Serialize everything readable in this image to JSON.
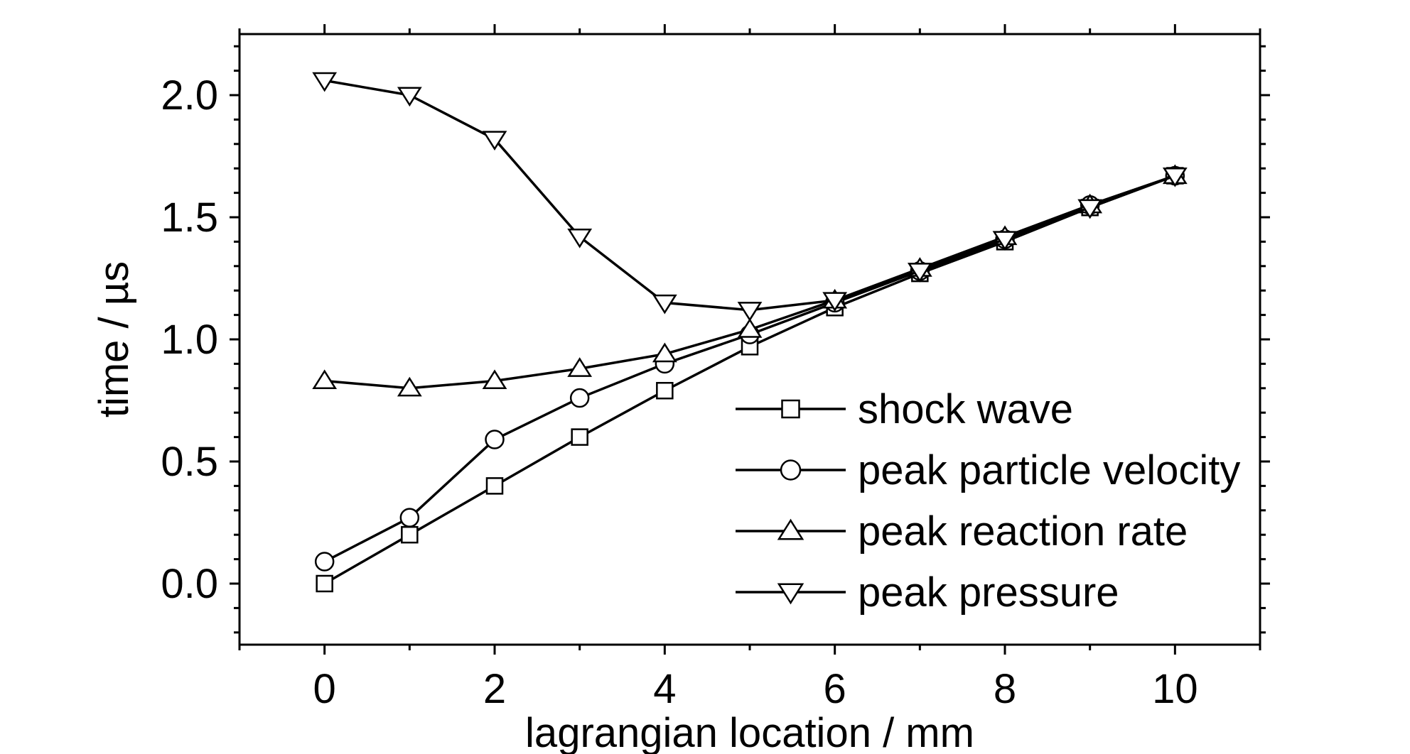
{
  "chart_data": {
    "type": "line",
    "xlabel": "lagrangian location / mm",
    "ylabel": "time / µs",
    "xlim": [
      -1,
      11
    ],
    "ylim": [
      -0.25,
      2.25
    ],
    "xticks": [
      0,
      2,
      4,
      6,
      8,
      10
    ],
    "xtick_labels": [
      "0",
      "2",
      "4",
      "6",
      "8",
      "10"
    ],
    "yticks": [
      0.0,
      0.5,
      1.0,
      1.5,
      2.0
    ],
    "ytick_labels": [
      "0.0",
      "0.5",
      "1.0",
      "1.5",
      "2.0"
    ],
    "legend_position": "lower-right",
    "grid": false,
    "x": [
      0,
      1,
      2,
      3,
      4,
      5,
      6,
      7,
      8,
      9,
      10
    ],
    "series": [
      {
        "name": "shock wave",
        "marker": "square",
        "values": [
          0.0,
          0.2,
          0.4,
          0.6,
          0.79,
          0.97,
          1.13,
          1.27,
          1.4,
          1.54,
          1.67
        ]
      },
      {
        "name": "peak particle velocity",
        "marker": "circle",
        "values": [
          0.09,
          0.27,
          0.59,
          0.76,
          0.9,
          1.02,
          1.15,
          1.28,
          1.41,
          1.55,
          1.67
        ]
      },
      {
        "name": "peak reaction rate",
        "marker": "triangle-up",
        "values": [
          0.83,
          0.8,
          0.83,
          0.88,
          0.94,
          1.04,
          1.16,
          1.29,
          1.42,
          1.55,
          1.67
        ]
      },
      {
        "name": "peak pressure",
        "marker": "triangle-down",
        "values": [
          2.06,
          2.0,
          1.82,
          1.42,
          1.15,
          1.12,
          1.16,
          1.28,
          1.41,
          1.54,
          1.67
        ]
      }
    ]
  }
}
